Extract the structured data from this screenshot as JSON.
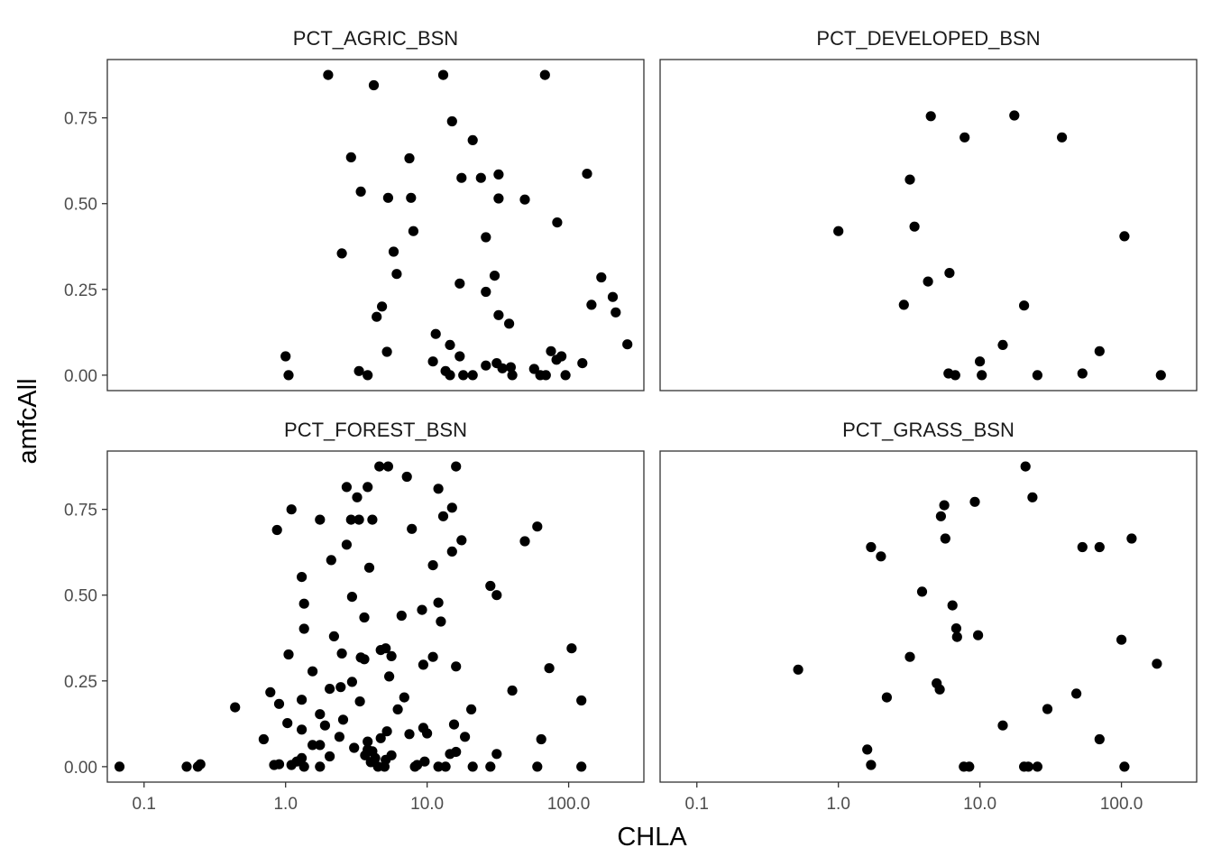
{
  "chart_data": {
    "type": "scatter",
    "xlabel": "CHLA",
    "ylabel": "amfcAll",
    "x_scale": "log10",
    "xlim": [
      0.055,
      340
    ],
    "ylim": [
      -0.045,
      0.92
    ],
    "x_ticks": [
      0.1,
      1,
      10,
      100
    ],
    "x_tick_labels": [
      "0.1",
      "1.0",
      "10.0",
      "100.0"
    ],
    "y_ticks": [
      0,
      0.25,
      0.5,
      0.75
    ],
    "y_tick_labels": [
      "0.00",
      "0.25",
      "0.50",
      "0.75"
    ],
    "grid": false,
    "point_color": "#000000",
    "panels": [
      {
        "title": "PCT_AGRIC_BSN",
        "points": [
          [
            2.0,
            0.875
          ],
          [
            13.0,
            0.875
          ],
          [
            68,
            0.875
          ],
          [
            4.2,
            0.845
          ],
          [
            15,
            0.74
          ],
          [
            21,
            0.685
          ],
          [
            2.9,
            0.635
          ],
          [
            7.5,
            0.632
          ],
          [
            17.5,
            0.575
          ],
          [
            24,
            0.575
          ],
          [
            32,
            0.585
          ],
          [
            135,
            0.587
          ],
          [
            3.4,
            0.535
          ],
          [
            5.3,
            0.517
          ],
          [
            7.7,
            0.517
          ],
          [
            32,
            0.515
          ],
          [
            49,
            0.512
          ],
          [
            83,
            0.445
          ],
          [
            8,
            0.42
          ],
          [
            26,
            0.402
          ],
          [
            2.5,
            0.355
          ],
          [
            5.8,
            0.36
          ],
          [
            6.1,
            0.295
          ],
          [
            30,
            0.29
          ],
          [
            170,
            0.285
          ],
          [
            17,
            0.267
          ],
          [
            26,
            0.243
          ],
          [
            205,
            0.228
          ],
          [
            145,
            0.205
          ],
          [
            215,
            0.183
          ],
          [
            4.8,
            0.2
          ],
          [
            4.4,
            0.17
          ],
          [
            32,
            0.175
          ],
          [
            38,
            0.15
          ],
          [
            11.5,
            0.12
          ],
          [
            260,
            0.09
          ],
          [
            14.5,
            0.088
          ],
          [
            5.2,
            0.068
          ],
          [
            75,
            0.07
          ],
          [
            1.0,
            0.055
          ],
          [
            17,
            0.055
          ],
          [
            89,
            0.055
          ],
          [
            82,
            0.045
          ],
          [
            11,
            0.04
          ],
          [
            31,
            0.035
          ],
          [
            125,
            0.035
          ],
          [
            26,
            0.028
          ],
          [
            39,
            0.023
          ],
          [
            34,
            0.02
          ],
          [
            57,
            0.018
          ],
          [
            3.3,
            0.012
          ],
          [
            13.5,
            0.012
          ],
          [
            1.05,
            0.0
          ],
          [
            3.8,
            0.0
          ],
          [
            14.5,
            0.0
          ],
          [
            18,
            0.0
          ],
          [
            21,
            0.0
          ],
          [
            40,
            0.0
          ],
          [
            63,
            0.0
          ],
          [
            69,
            0.0
          ],
          [
            95,
            0.0
          ]
        ]
      },
      {
        "title": "PCT_DEVELOPED_BSN",
        "points": [
          [
            4.5,
            0.755
          ],
          [
            17.5,
            0.757
          ],
          [
            7.8,
            0.693
          ],
          [
            38,
            0.693
          ],
          [
            3.2,
            0.57
          ],
          [
            3.45,
            0.433
          ],
          [
            1.0,
            0.42
          ],
          [
            105,
            0.405
          ],
          [
            6.1,
            0.298
          ],
          [
            4.3,
            0.273
          ],
          [
            2.9,
            0.205
          ],
          [
            20.5,
            0.203
          ],
          [
            14.5,
            0.088
          ],
          [
            70,
            0.07
          ],
          [
            10,
            0.04
          ],
          [
            6,
            0.005
          ],
          [
            53,
            0.005
          ],
          [
            6.7,
            0.0
          ],
          [
            10.3,
            0.0
          ],
          [
            25.5,
            0.0
          ],
          [
            190,
            0.0
          ]
        ]
      },
      {
        "title": "PCT_FOREST_BSN",
        "points": [
          [
            4.6,
            0.875
          ],
          [
            5.3,
            0.875
          ],
          [
            16,
            0.875
          ],
          [
            7.2,
            0.845
          ],
          [
            2.7,
            0.815
          ],
          [
            3.8,
            0.815
          ],
          [
            12,
            0.81
          ],
          [
            3.2,
            0.785
          ],
          [
            15,
            0.755
          ],
          [
            1.1,
            0.75
          ],
          [
            2.9,
            0.72
          ],
          [
            3.3,
            0.72
          ],
          [
            4.1,
            0.72
          ],
          [
            1.75,
            0.72
          ],
          [
            13,
            0.73
          ],
          [
            0.87,
            0.69
          ],
          [
            7.8,
            0.693
          ],
          [
            60,
            0.7
          ],
          [
            17.5,
            0.66
          ],
          [
            49,
            0.657
          ],
          [
            2.7,
            0.647
          ],
          [
            15,
            0.627
          ],
          [
            2.1,
            0.602
          ],
          [
            11,
            0.587
          ],
          [
            3.9,
            0.58
          ],
          [
            1.3,
            0.553
          ],
          [
            28,
            0.527
          ],
          [
            31,
            0.5
          ],
          [
            2.95,
            0.495
          ],
          [
            1.35,
            0.475
          ],
          [
            12,
            0.478
          ],
          [
            9.2,
            0.457
          ],
          [
            6.6,
            0.44
          ],
          [
            3.6,
            0.435
          ],
          [
            12.5,
            0.423
          ],
          [
            1.35,
            0.402
          ],
          [
            2.2,
            0.38
          ],
          [
            4.7,
            0.34
          ],
          [
            5.1,
            0.345
          ],
          [
            105,
            0.345
          ],
          [
            1.05,
            0.327
          ],
          [
            2.5,
            0.33
          ],
          [
            3.4,
            0.318
          ],
          [
            5.6,
            0.322
          ],
          [
            11,
            0.32
          ],
          [
            3.6,
            0.313
          ],
          [
            9.4,
            0.297
          ],
          [
            16,
            0.292
          ],
          [
            73,
            0.287
          ],
          [
            1.55,
            0.278
          ],
          [
            5.4,
            0.263
          ],
          [
            2.95,
            0.247
          ],
          [
            2.45,
            0.232
          ],
          [
            2.05,
            0.227
          ],
          [
            6.9,
            0.202
          ],
          [
            40,
            0.222
          ],
          [
            0.78,
            0.217
          ],
          [
            1.3,
            0.195
          ],
          [
            3.35,
            0.19
          ],
          [
            123,
            0.193
          ],
          [
            0.9,
            0.183
          ],
          [
            0.44,
            0.173
          ],
          [
            6.2,
            0.167
          ],
          [
            20.5,
            0.167
          ],
          [
            1.75,
            0.153
          ],
          [
            2.55,
            0.137
          ],
          [
            1.03,
            0.127
          ],
          [
            9.4,
            0.113
          ],
          [
            1.9,
            0.12
          ],
          [
            15.5,
            0.123
          ],
          [
            1.3,
            0.108
          ],
          [
            5.2,
            0.103
          ],
          [
            10,
            0.097
          ],
          [
            7.5,
            0.095
          ],
          [
            0.7,
            0.08
          ],
          [
            2.4,
            0.087
          ],
          [
            4.7,
            0.083
          ],
          [
            18.5,
            0.087
          ],
          [
            64,
            0.08
          ],
          [
            3.8,
            0.073
          ],
          [
            1.55,
            0.063
          ],
          [
            1.75,
            0.063
          ],
          [
            3.05,
            0.055
          ],
          [
            3.8,
            0.05
          ],
          [
            4.1,
            0.045
          ],
          [
            1.3,
            0.025
          ],
          [
            1.2,
            0.015
          ],
          [
            2.05,
            0.03
          ],
          [
            3.65,
            0.033
          ],
          [
            5.6,
            0.033
          ],
          [
            14.5,
            0.037
          ],
          [
            16,
            0.043
          ],
          [
            31,
            0.037
          ],
          [
            4.3,
            0.025
          ],
          [
            5.1,
            0.02
          ],
          [
            9.6,
            0.015
          ],
          [
            4.0,
            0.013
          ],
          [
            0.25,
            0.007
          ],
          [
            0.83,
            0.005
          ],
          [
            0.9,
            0.007
          ],
          [
            8.5,
            0.005
          ],
          [
            1.1,
            0.005
          ],
          [
            0.067,
            0.0
          ],
          [
            0.2,
            0.0
          ],
          [
            0.24,
            0.0
          ],
          [
            1.35,
            0.0
          ],
          [
            1.75,
            0.0
          ],
          [
            4.5,
            0.0
          ],
          [
            5.0,
            0.0
          ],
          [
            8.2,
            0.0
          ],
          [
            12,
            0.0
          ],
          [
            13.5,
            0.0
          ],
          [
            21,
            0.0
          ],
          [
            28,
            0.0
          ],
          [
            60,
            0.0
          ],
          [
            123,
            0.0
          ]
        ]
      },
      {
        "title": "PCT_GRASS_BSN",
        "points": [
          [
            21,
            0.875
          ],
          [
            23.5,
            0.785
          ],
          [
            5.6,
            0.762
          ],
          [
            9.2,
            0.772
          ],
          [
            5.3,
            0.73
          ],
          [
            5.7,
            0.665
          ],
          [
            118,
            0.665
          ],
          [
            1.7,
            0.64
          ],
          [
            53,
            0.64
          ],
          [
            70,
            0.64
          ],
          [
            2.0,
            0.613
          ],
          [
            3.9,
            0.51
          ],
          [
            6.4,
            0.47
          ],
          [
            6.8,
            0.403
          ],
          [
            9.7,
            0.383
          ],
          [
            6.9,
            0.378
          ],
          [
            100,
            0.37
          ],
          [
            0.52,
            0.283
          ],
          [
            3.2,
            0.32
          ],
          [
            178,
            0.3
          ],
          [
            4.95,
            0.243
          ],
          [
            5.2,
            0.225
          ],
          [
            48,
            0.213
          ],
          [
            2.2,
            0.202
          ],
          [
            30,
            0.168
          ],
          [
            14.5,
            0.12
          ],
          [
            70,
            0.08
          ],
          [
            1.6,
            0.05
          ],
          [
            1.7,
            0.005
          ],
          [
            7.7,
            0.0
          ],
          [
            8.4,
            0.0
          ],
          [
            20.5,
            0.0
          ],
          [
            22,
            0.0
          ],
          [
            25.5,
            0.0
          ],
          [
            105,
            0.0
          ]
        ]
      }
    ]
  }
}
